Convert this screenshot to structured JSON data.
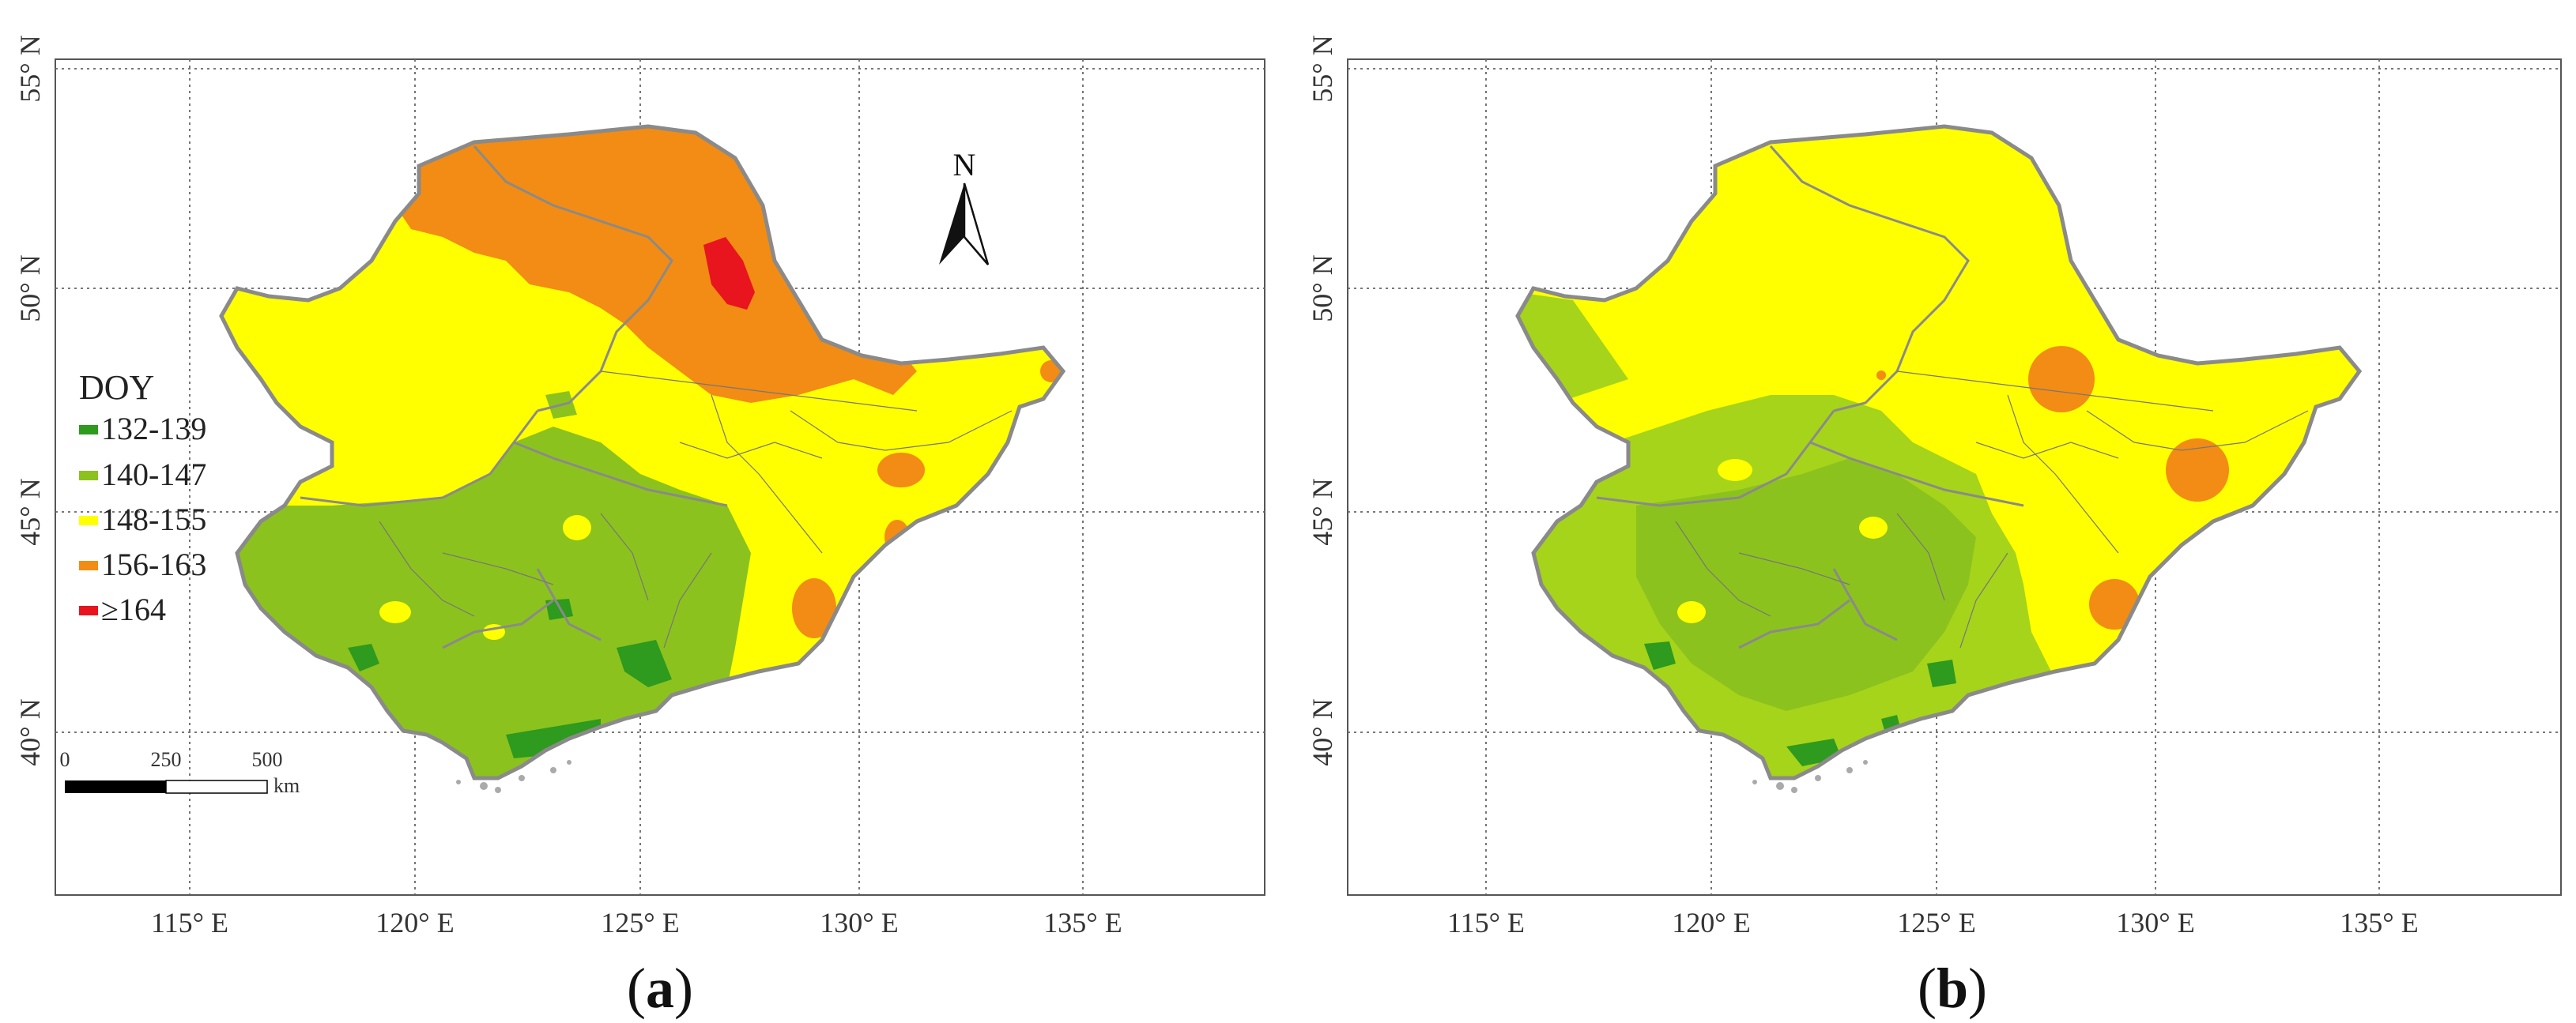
{
  "colors": {
    "c132_139": "#2e9a1e",
    "c140_147": "#8cc21e",
    "c148_155": "#ffff00",
    "c156_163": "#f28c14",
    "c164": "#e8141e",
    "b_green_light": "#a6d41a",
    "b_green": "#8cc21e",
    "border": "#8a8a8a"
  },
  "map_a": {
    "lon_labels": [
      "115° E",
      "120° E",
      "125° E",
      "130° E",
      "135° E"
    ],
    "lat_labels": [
      "55° N",
      "50° N",
      "45° N",
      "40° N"
    ],
    "legend": {
      "title": "DOY",
      "items": [
        {
          "label": "132-139",
          "color": "#2e9a1e"
        },
        {
          "label": "140-147",
          "color": "#8cc21e"
        },
        {
          "label": "148-155",
          "color": "#ffff00"
        },
        {
          "label": "156-163",
          "color": "#f28c14"
        },
        {
          "label": "≥164",
          "color": "#e8141e"
        }
      ]
    },
    "scale_bar": {
      "ticks": [
        "0",
        "250",
        "500"
      ],
      "unit": "km"
    },
    "north_arrow": "N",
    "caption": {
      "open": "(",
      "letter": "a",
      "close": ")"
    }
  },
  "map_b": {
    "lon_labels": [
      "115° E",
      "120° E",
      "125° E",
      "130° E",
      "135° E"
    ],
    "lat_labels": [
      "55° N",
      "50° N",
      "45° N",
      "40° N"
    ],
    "caption": {
      "open": "(",
      "letter": "b",
      "close": ")"
    }
  }
}
